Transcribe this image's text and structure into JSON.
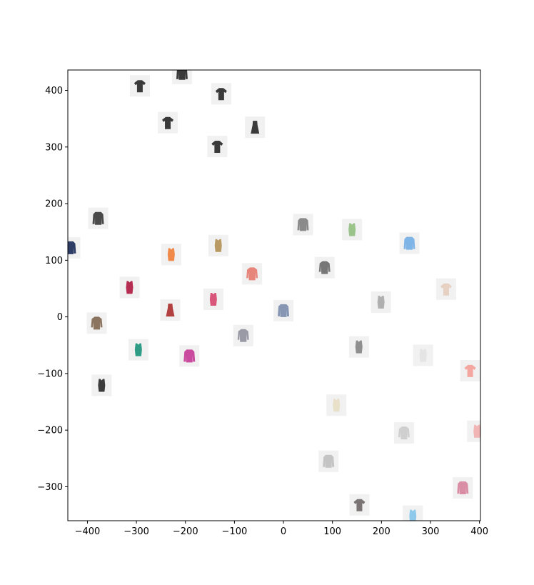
{
  "chart_data": {
    "type": "scatter",
    "title": "",
    "xlabel": "",
    "ylabel": "",
    "xlim": [
      -440,
      402
    ],
    "ylim": [
      -360,
      436
    ],
    "grid": false,
    "legend": "none",
    "xticks": [
      -400,
      -300,
      -200,
      -100,
      0,
      100,
      200,
      300,
      400
    ],
    "yticks": [
      -300,
      -200,
      -100,
      0,
      100,
      200,
      300,
      400
    ],
    "xtick_labels": [
      "−400",
      "−300",
      "−200",
      "−100",
      "0",
      "100",
      "200",
      "300",
      "400"
    ],
    "ytick_labels": [
      "−300",
      "−200",
      "−100",
      "0",
      "100",
      "200",
      "300",
      "400"
    ],
    "marker": "clothing-thumbnail-icon",
    "points": [
      {
        "x": -293,
        "y": 408,
        "item": "tshirt",
        "color": "#3a3a3a"
      },
      {
        "x": -207,
        "y": 430,
        "item": "jacket",
        "color": "#3a3a3a"
      },
      {
        "x": -127,
        "y": 394,
        "item": "tshirt",
        "color": "#3a3a3a"
      },
      {
        "x": -236,
        "y": 343,
        "item": "tshirt",
        "color": "#3a3a3a"
      },
      {
        "x": -58,
        "y": 335,
        "item": "dress",
        "color": "#3a3a3a"
      },
      {
        "x": -135,
        "y": 301,
        "item": "tshirt",
        "color": "#3a3a3a"
      },
      {
        "x": -378,
        "y": 174,
        "item": "jacket",
        "color": "#4a4a4a"
      },
      {
        "x": -435,
        "y": 122,
        "item": "jacket",
        "color": "#2e3d66"
      },
      {
        "x": 40,
        "y": 163,
        "item": "jacket",
        "color": "#8a8a8a"
      },
      {
        "x": 140,
        "y": 154,
        "item": "top",
        "color": "#9bc48a"
      },
      {
        "x": 257,
        "y": 130,
        "item": "jacket",
        "color": "#7fb4e6"
      },
      {
        "x": -229,
        "y": 110,
        "item": "top",
        "color": "#f08a4b"
      },
      {
        "x": -133,
        "y": 126,
        "item": "top",
        "color": "#b89a62"
      },
      {
        "x": -64,
        "y": 76,
        "item": "shirt",
        "color": "#e8857b"
      },
      {
        "x": 84,
        "y": 87,
        "item": "shirt",
        "color": "#777777"
      },
      {
        "x": -314,
        "y": 52,
        "item": "top",
        "color": "#b52e52"
      },
      {
        "x": 332,
        "y": 49,
        "item": "tshirt",
        "color": "#e6d1c2"
      },
      {
        "x": -231,
        "y": 12,
        "item": "dress",
        "color": "#b34040"
      },
      {
        "x": -143,
        "y": 31,
        "item": "top",
        "color": "#d9557a"
      },
      {
        "x": 0,
        "y": 11,
        "item": "jacket",
        "color": "#8796b3"
      },
      {
        "x": 199,
        "y": 26,
        "item": "top",
        "color": "#b0b0b0"
      },
      {
        "x": -381,
        "y": -11,
        "item": "shirt",
        "color": "#8c7560"
      },
      {
        "x": -82,
        "y": -33,
        "item": "shirt",
        "color": "#9a9aa6"
      },
      {
        "x": 154,
        "y": -53,
        "item": "top",
        "color": "#8f8f8f"
      },
      {
        "x": -296,
        "y": -58,
        "item": "top",
        "color": "#2f9c86"
      },
      {
        "x": -192,
        "y": -69,
        "item": "jacket",
        "color": "#c94a9e"
      },
      {
        "x": 285,
        "y": -68,
        "item": "top",
        "color": "#e4e4e4"
      },
      {
        "x": 381,
        "y": -95,
        "item": "tshirt",
        "color": "#f4a6a0"
      },
      {
        "x": -371,
        "y": -121,
        "item": "top",
        "color": "#3c3c3c"
      },
      {
        "x": 108,
        "y": -156,
        "item": "top",
        "color": "#e9e0c9"
      },
      {
        "x": 395,
        "y": -202,
        "item": "top",
        "color": "#f2b5b5"
      },
      {
        "x": 246,
        "y": -205,
        "item": "shirt",
        "color": "#cfcfcf"
      },
      {
        "x": 92,
        "y": -255,
        "item": "jacket",
        "color": "#c4c4c4"
      },
      {
        "x": 366,
        "y": -302,
        "item": "jacket",
        "color": "#d98ea6"
      },
      {
        "x": 155,
        "y": -332,
        "item": "tshirt",
        "color": "#7a7474"
      },
      {
        "x": 264,
        "y": -352,
        "item": "top",
        "color": "#8ec9ec"
      }
    ]
  }
}
